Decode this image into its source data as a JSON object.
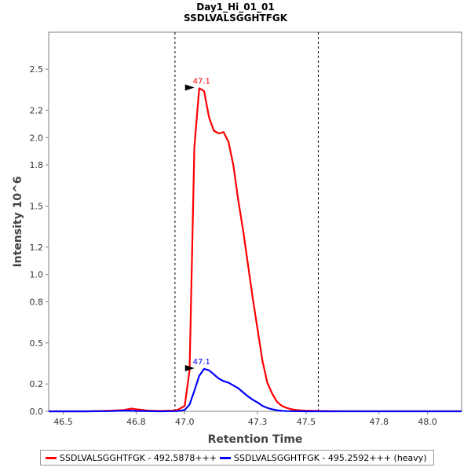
{
  "chart_data": {
    "type": "line",
    "title": "Day1_Hi_01_01",
    "subtitle": "SSDLVALSGGHTFGK",
    "xlabel": "Retention Time",
    "ylabel": "Intensity 10^6",
    "xlim": [
      46.44,
      48.14
    ],
    "ylim": [
      0,
      2.77
    ],
    "xticks": [
      46.5,
      46.8,
      47.0,
      47.3,
      47.5,
      47.8,
      48.0
    ],
    "xtick_labels": [
      "46.5",
      "46.8",
      "47.0",
      "47.3",
      "47.5",
      "47.8",
      "48.0"
    ],
    "yticks": [
      0.0,
      0.2,
      0.5,
      0.8,
      1.0,
      1.2,
      1.5,
      1.8,
      2.0,
      2.2,
      2.5
    ],
    "ytick_labels": [
      "0.0",
      "0.2",
      "0.5",
      "0.8",
      "1.0",
      "1.2",
      "1.5",
      "1.8",
      "2.0",
      "2.2",
      "2.5"
    ],
    "integration_bounds": [
      46.96,
      47.55
    ],
    "series": [
      {
        "name": "SSDLVALSGGHTFGK - 492.5878+++",
        "color": "#ff0000",
        "peak_label": "47.1",
        "peak": [
          47.05,
          2.36
        ],
        "x": [
          46.44,
          46.5,
          46.6,
          46.7,
          46.75,
          46.78,
          46.8,
          46.85,
          46.9,
          46.95,
          46.97,
          47.0,
          47.02,
          47.04,
          47.06,
          47.08,
          47.1,
          47.12,
          47.14,
          47.16,
          47.18,
          47.2,
          47.22,
          47.24,
          47.26,
          47.28,
          47.3,
          47.32,
          47.34,
          47.36,
          47.38,
          47.4,
          47.42,
          47.44,
          47.46,
          47.48,
          47.5,
          47.55,
          47.6,
          47.7,
          47.8,
          47.9,
          48.0,
          48.14
        ],
        "y": [
          0.0,
          0.0,
          0.0,
          0.005,
          0.01,
          0.02,
          0.015,
          0.005,
          0.003,
          0.005,
          0.01,
          0.04,
          0.3,
          1.93,
          2.36,
          2.34,
          2.15,
          2.05,
          2.03,
          2.04,
          1.97,
          1.8,
          1.55,
          1.33,
          1.08,
          0.83,
          0.6,
          0.37,
          0.21,
          0.13,
          0.07,
          0.04,
          0.025,
          0.015,
          0.01,
          0.007,
          0.005,
          0.003,
          0.002,
          0.001,
          0.001,
          0.001,
          0.001,
          0.001
        ]
      },
      {
        "name": "SSDLVALSGGHTFGK - 495.2592+++ (heavy)",
        "color": "#0000ff",
        "peak_label": "47.1",
        "peak": [
          47.05,
          0.31
        ],
        "x": [
          46.44,
          46.6,
          46.7,
          46.76,
          46.8,
          46.9,
          46.97,
          47.0,
          47.02,
          47.04,
          47.06,
          47.08,
          47.1,
          47.12,
          47.14,
          47.16,
          47.18,
          47.2,
          47.22,
          47.24,
          47.26,
          47.28,
          47.3,
          47.32,
          47.34,
          47.36,
          47.38,
          47.4,
          47.42,
          47.44,
          47.5,
          47.6,
          47.8,
          48.0,
          48.14
        ],
        "y": [
          0.0,
          0.0,
          0.002,
          0.006,
          0.003,
          0.0,
          0.002,
          0.01,
          0.05,
          0.15,
          0.26,
          0.31,
          0.3,
          0.27,
          0.24,
          0.22,
          0.21,
          0.19,
          0.17,
          0.14,
          0.11,
          0.085,
          0.065,
          0.04,
          0.025,
          0.015,
          0.008,
          0.004,
          0.002,
          0.001,
          0.0,
          0.0,
          0.0,
          0.0,
          0.0
        ]
      }
    ],
    "legend_position": "bottom"
  }
}
